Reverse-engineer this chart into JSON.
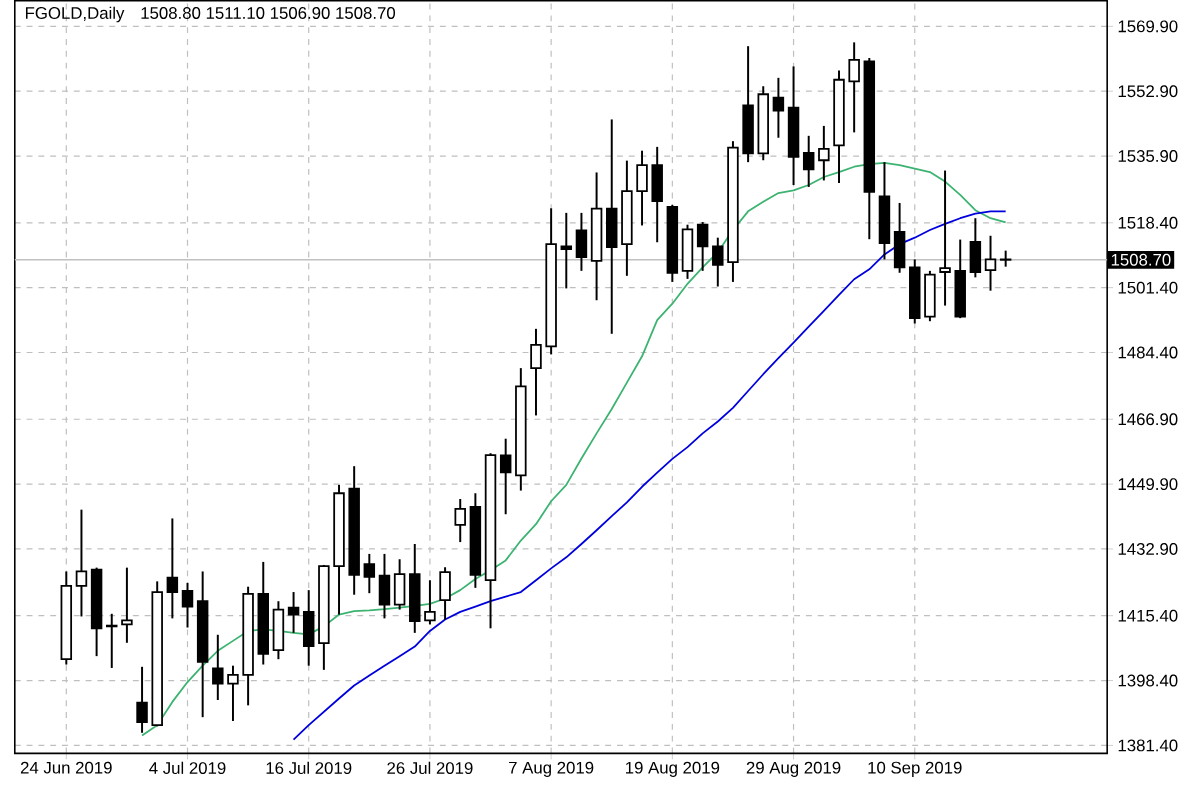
{
  "chart_data": {
    "type": "candlestick",
    "title": "FGOLD,Daily",
    "subtitle": "1508.80 1511.10 1506.90 1508.70",
    "categories": [
      "24 Jun 2019",
      null,
      null,
      null,
      null,
      null,
      null,
      null,
      "4 Jul 2019",
      null,
      null,
      null,
      null,
      null,
      null,
      null,
      "16 Jul 2019",
      null,
      null,
      null,
      null,
      null,
      null,
      null,
      "26 Jul 2019",
      null,
      null,
      null,
      null,
      null,
      null,
      null,
      "7 Aug 2019",
      null,
      null,
      null,
      null,
      null,
      null,
      null,
      "19 Aug 2019",
      null,
      null,
      null,
      null,
      null,
      null,
      null,
      "29 Aug 2019",
      null,
      null,
      null,
      null,
      null,
      null,
      null,
      "10 Sep 2019",
      null,
      null,
      null,
      null,
      null,
      null
    ],
    "ohlc": [
      [
        1404.0,
        1427.0,
        1402.6,
        1423.2
      ],
      [
        1423.2,
        1443.2,
        1415.2,
        1427.0
      ],
      [
        1427.5,
        1428.0,
        1404.8,
        1412.1
      ],
      [
        1412.8,
        1415.9,
        1401.7,
        1412.6
      ],
      [
        1413.1,
        1428.0,
        1408.3,
        1414.2
      ],
      [
        1392.6,
        1402.0,
        1384.7,
        1387.5
      ],
      [
        1386.7,
        1424.4,
        1386.4,
        1421.6
      ],
      [
        1425.4,
        1440.9,
        1414.7,
        1421.6
      ],
      [
        1421.9,
        1424.0,
        1412.3,
        1417.8
      ],
      [
        1419.2,
        1427.0,
        1388.8,
        1403.3
      ],
      [
        1401.6,
        1410.4,
        1393.3,
        1397.6
      ],
      [
        1397.6,
        1402.3,
        1387.8,
        1399.9
      ],
      [
        1399.9,
        1423.0,
        1391.9,
        1421.1
      ],
      [
        1421.1,
        1429.5,
        1402.6,
        1405.4
      ],
      [
        1406.4,
        1419.2,
        1404.0,
        1417.0
      ],
      [
        1417.5,
        1421.6,
        1410.9,
        1415.7
      ],
      [
        1416.4,
        1422.1,
        1402.3,
        1407.4
      ],
      [
        1408.2,
        1428.7,
        1401.2,
        1428.4
      ],
      [
        1428.4,
        1449.7,
        1415.7,
        1447.5
      ],
      [
        1448.7,
        1454.6,
        1420.9,
        1426.1
      ],
      [
        1428.9,
        1431.6,
        1421.3,
        1425.6
      ],
      [
        1425.9,
        1431.6,
        1414.7,
        1418.3
      ],
      [
        1418.3,
        1430.2,
        1417.0,
        1426.3
      ],
      [
        1426.3,
        1434.2,
        1410.9,
        1414.0
      ],
      [
        1414.2,
        1424.7,
        1413.1,
        1416.4
      ],
      [
        1419.5,
        1428.1,
        1414.4,
        1426.8
      ],
      [
        1439.2,
        1446.0,
        1434.7,
        1443.4
      ],
      [
        1443.9,
        1447.5,
        1422.7,
        1426.1
      ],
      [
        1424.7,
        1458.0,
        1412.1,
        1457.5
      ],
      [
        1457.4,
        1461.8,
        1442.0,
        1453.0
      ],
      [
        1452.2,
        1480.3,
        1448.2,
        1475.5
      ],
      [
        1480.3,
        1490.6,
        1467.9,
        1486.4
      ],
      [
        1486.0,
        1522.2,
        1483.9,
        1512.8
      ],
      [
        1512.2,
        1521.0,
        1501.2,
        1511.5
      ],
      [
        1516.4,
        1521.0,
        1505.8,
        1509.4
      ],
      [
        1508.4,
        1531.6,
        1498.1,
        1522.1
      ],
      [
        1522.1,
        1545.5,
        1489.3,
        1512.0
      ],
      [
        1512.8,
        1534.7,
        1504.5,
        1526.7
      ],
      [
        1526.7,
        1537.3,
        1517.7,
        1533.5
      ],
      [
        1533.5,
        1538.3,
        1513.3,
        1524.1
      ],
      [
        1522.6,
        1523.1,
        1502.9,
        1505.3
      ],
      [
        1505.8,
        1517.9,
        1503.7,
        1516.7
      ],
      [
        1517.9,
        1518.6,
        1505.8,
        1512.2
      ],
      [
        1512.2,
        1514.5,
        1501.7,
        1507.4
      ],
      [
        1508.1,
        1539.8,
        1502.9,
        1538.1
      ],
      [
        1549.2,
        1564.7,
        1534.3,
        1536.6
      ],
      [
        1536.6,
        1554.2,
        1534.8,
        1552.1
      ],
      [
        1551.2,
        1556.4,
        1540.7,
        1547.8
      ],
      [
        1548.6,
        1559.4,
        1528.3,
        1535.7
      ],
      [
        1536.7,
        1541.2,
        1527.8,
        1532.4
      ],
      [
        1534.8,
        1543.8,
        1529.5,
        1537.8
      ],
      [
        1538.7,
        1558.3,
        1528.8,
        1555.9
      ],
      [
        1555.5,
        1565.7,
        1542.1,
        1561.1
      ],
      [
        1560.7,
        1561.6,
        1514.1,
        1526.5
      ],
      [
        1525.3,
        1534.3,
        1508.8,
        1513.1
      ],
      [
        1516.0,
        1523.6,
        1505.3,
        1506.7
      ],
      [
        1506.7,
        1508.8,
        1492.0,
        1493.4
      ],
      [
        1493.8,
        1505.8,
        1492.6,
        1504.8
      ],
      [
        1505.5,
        1532.1,
        1496.7,
        1506.5
      ],
      [
        1505.8,
        1514.0,
        1493.4,
        1493.8
      ],
      [
        1513.4,
        1519.6,
        1504.1,
        1505.5
      ],
      [
        1506.0,
        1515.0,
        1500.6,
        1508.8
      ],
      [
        1508.8,
        1511.1,
        1506.9,
        1508.7
      ]
    ],
    "series": [
      {
        "type": "line",
        "color": "#3cb371",
        "values": [
          null,
          null,
          null,
          null,
          null,
          1384.0,
          1386.7,
          1392.8,
          1398.0,
          1402.3,
          1406.2,
          1408.8,
          1411.4,
          1411.8,
          1411.4,
          1410.9,
          1410.5,
          1412.6,
          1415.7,
          1416.6,
          1416.8,
          1417.1,
          1417.5,
          1418.0,
          1418.5,
          1419.9,
          1422.1,
          1425.0,
          1427.3,
          1429.9,
          1435.1,
          1439.4,
          1445.4,
          1449.7,
          1456.6,
          1463.2,
          1469.6,
          1476.5,
          1483.4,
          1492.9,
          1497.2,
          1502.4,
          1506.7,
          1510.7,
          1516.5,
          1521.4,
          1523.9,
          1526.2,
          1526.9,
          1528.3,
          1530.4,
          1531.7,
          1533.1,
          1533.8,
          1534.1,
          1533.5,
          1532.6,
          1531.7,
          1529.2,
          1525.7,
          1521.7,
          1519.6,
          1518.5
        ]
      },
      {
        "type": "line",
        "color": "#0000dd",
        "values": [
          null,
          null,
          null,
          null,
          null,
          null,
          null,
          null,
          null,
          null,
          null,
          null,
          null,
          null,
          null,
          1382.9,
          1386.7,
          1390.2,
          1393.7,
          1397.1,
          1399.7,
          1402.3,
          1404.8,
          1407.3,
          1411.4,
          1414.4,
          1416.4,
          1417.8,
          1419.2,
          1420.4,
          1421.6,
          1424.7,
          1427.8,
          1430.7,
          1434.2,
          1437.8,
          1441.5,
          1445.1,
          1449.2,
          1452.9,
          1456.5,
          1459.6,
          1463.2,
          1466.3,
          1469.9,
          1474.3,
          1478.7,
          1482.9,
          1487.0,
          1491.2,
          1495.3,
          1499.5,
          1503.6,
          1506.2,
          1510.1,
          1512.8,
          1514.5,
          1516.5,
          1518.1,
          1519.6,
          1520.8,
          1521.4,
          1521.4
        ]
      }
    ],
    "ylim": [
      1379.3,
      1576.6
    ],
    "yticks": [
      {
        "value": 1381.4,
        "label": "1381.40"
      },
      {
        "value": 1398.4,
        "label": "1398.40"
      },
      {
        "value": 1415.4,
        "label": "1415.40"
      },
      {
        "value": 1432.9,
        "label": "1432.90"
      },
      {
        "value": 1449.9,
        "label": "1449.90"
      },
      {
        "value": 1466.9,
        "label": "1466.90"
      },
      {
        "value": 1484.4,
        "label": "1484.40"
      },
      {
        "value": 1501.4,
        "label": "1501.40"
      },
      {
        "value": 1518.4,
        "label": "1518.40"
      },
      {
        "value": 1535.9,
        "label": "1535.90"
      },
      {
        "value": 1552.9,
        "label": "1552.90"
      },
      {
        "value": 1569.9,
        "label": "1569.90"
      }
    ],
    "ref_lines": [
      {
        "axis": "y",
        "value": 1508.7,
        "label": "1508.70",
        "color": "#c0c0c0"
      }
    ],
    "grid": true
  }
}
